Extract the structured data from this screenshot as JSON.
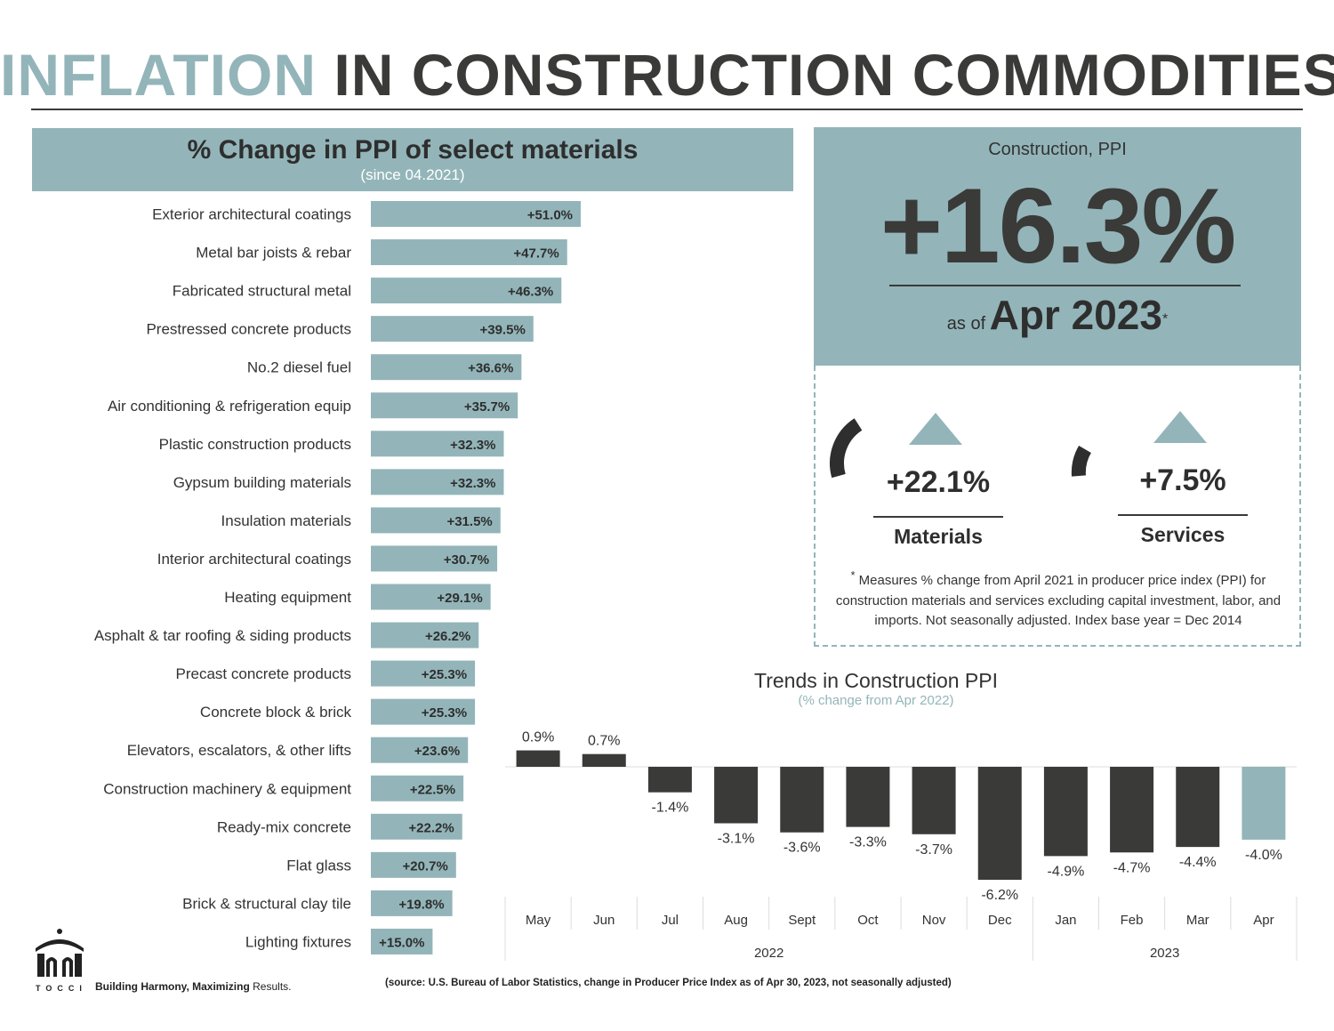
{
  "title": {
    "part1": "INFLATION",
    "part2": "IN CONSTRUCTION COMMODITIES"
  },
  "colors": {
    "accent": "#93b5b9",
    "dark": "#3a3a38"
  },
  "kpi": {
    "label": "Construction, PPI",
    "value": "+16.3%",
    "as_of_prefix": "as of",
    "as_of_date": "Apr 2023",
    "footnote_mark": "*"
  },
  "materials": {
    "value": "+22.1%",
    "label": "Materials",
    "icon": "up-triangle-icon"
  },
  "services": {
    "value": "+7.5%",
    "label": "Services",
    "icon": "up-triangle-icon"
  },
  "footnote": {
    "mark": "*",
    "text": "Measures % change from April 2021 in producer price index (PPI) for construction materials and services excluding capital investment, labor, and imports. Not seasonally adjusted. Index base year = Dec 2014"
  },
  "footer": {
    "brand": "TOCCI",
    "tagline_bold": "Building Harmony, Maximizing",
    "tagline_rest": "Results.",
    "source": "(source: U.S. Bureau of Labor Statistics, change in Producer Price Index as of Apr 30, 2023, not seasonally adjusted)"
  },
  "chart_data": [
    {
      "type": "bar",
      "orientation": "horizontal",
      "title": "% Change in PPI of select materials",
      "subtitle": "(since 04.2021)",
      "categories": [
        "Exterior architectural coatings",
        "Metal bar joists & rebar",
        "Fabricated structural metal",
        "Prestressed concrete products",
        "No.2 diesel fuel",
        "Air conditioning & refrigeration equip",
        "Plastic construction products",
        "Gypsum building materials",
        "Insulation materials",
        "Interior architectural coatings",
        "Heating equipment",
        "Asphalt & tar roofing & siding products",
        "Precast concrete products",
        "Concrete block & brick",
        "Elevators, escalators, & other lifts",
        "Construction machinery & equipment",
        "Ready-mix concrete",
        "Flat glass",
        "Brick & structural clay tile",
        "Lighting fixtures"
      ],
      "values": [
        51.0,
        47.7,
        46.3,
        39.5,
        36.6,
        35.7,
        32.3,
        32.3,
        31.5,
        30.7,
        29.1,
        26.2,
        25.3,
        25.3,
        23.6,
        22.5,
        22.2,
        20.7,
        19.8,
        15.0
      ],
      "labels": [
        "+51.0%",
        "+47.7%",
        "+46.3%",
        "+39.5%",
        "+36.6%",
        "+35.7%",
        "+32.3%",
        "+32.3%",
        "+31.5%",
        "+30.7%",
        "+29.1%",
        "+26.2%",
        "+25.3%",
        "+25.3%",
        "+23.6%",
        "+22.5%",
        "+22.2%",
        "+20.7%",
        "+19.8%",
        "+15.0%"
      ],
      "color": "#93b5b9"
    },
    {
      "type": "bar",
      "title": "Trends in Construction PPI",
      "subtitle": "(% change from Apr 2022)",
      "categories": [
        "May",
        "Jun",
        "Jul",
        "Aug",
        "Sept",
        "Oct",
        "Nov",
        "Dec",
        "Jan",
        "Feb",
        "Mar",
        "Apr"
      ],
      "groups": [
        {
          "label": "2022",
          "count": 8
        },
        {
          "label": "2023",
          "count": 4
        }
      ],
      "values": [
        0.9,
        0.7,
        -1.4,
        -3.1,
        -3.6,
        -3.3,
        -3.7,
        -6.2,
        -4.9,
        -4.7,
        -4.4,
        -4.0
      ],
      "labels": [
        "0.9%",
        "0.7%",
        "-1.4%",
        "-3.1%",
        "-3.6%",
        "-3.3%",
        "-3.7%",
        "-6.2%",
        "-4.9%",
        "-4.7%",
        "-4.4%",
        "-4.0%"
      ],
      "colors": [
        "#3a3a38",
        "#3a3a38",
        "#3a3a38",
        "#3a3a38",
        "#3a3a38",
        "#3a3a38",
        "#3a3a38",
        "#3a3a38",
        "#3a3a38",
        "#3a3a38",
        "#3a3a38",
        "#93b5b9"
      ],
      "grid": false,
      "legend": "none"
    }
  ]
}
